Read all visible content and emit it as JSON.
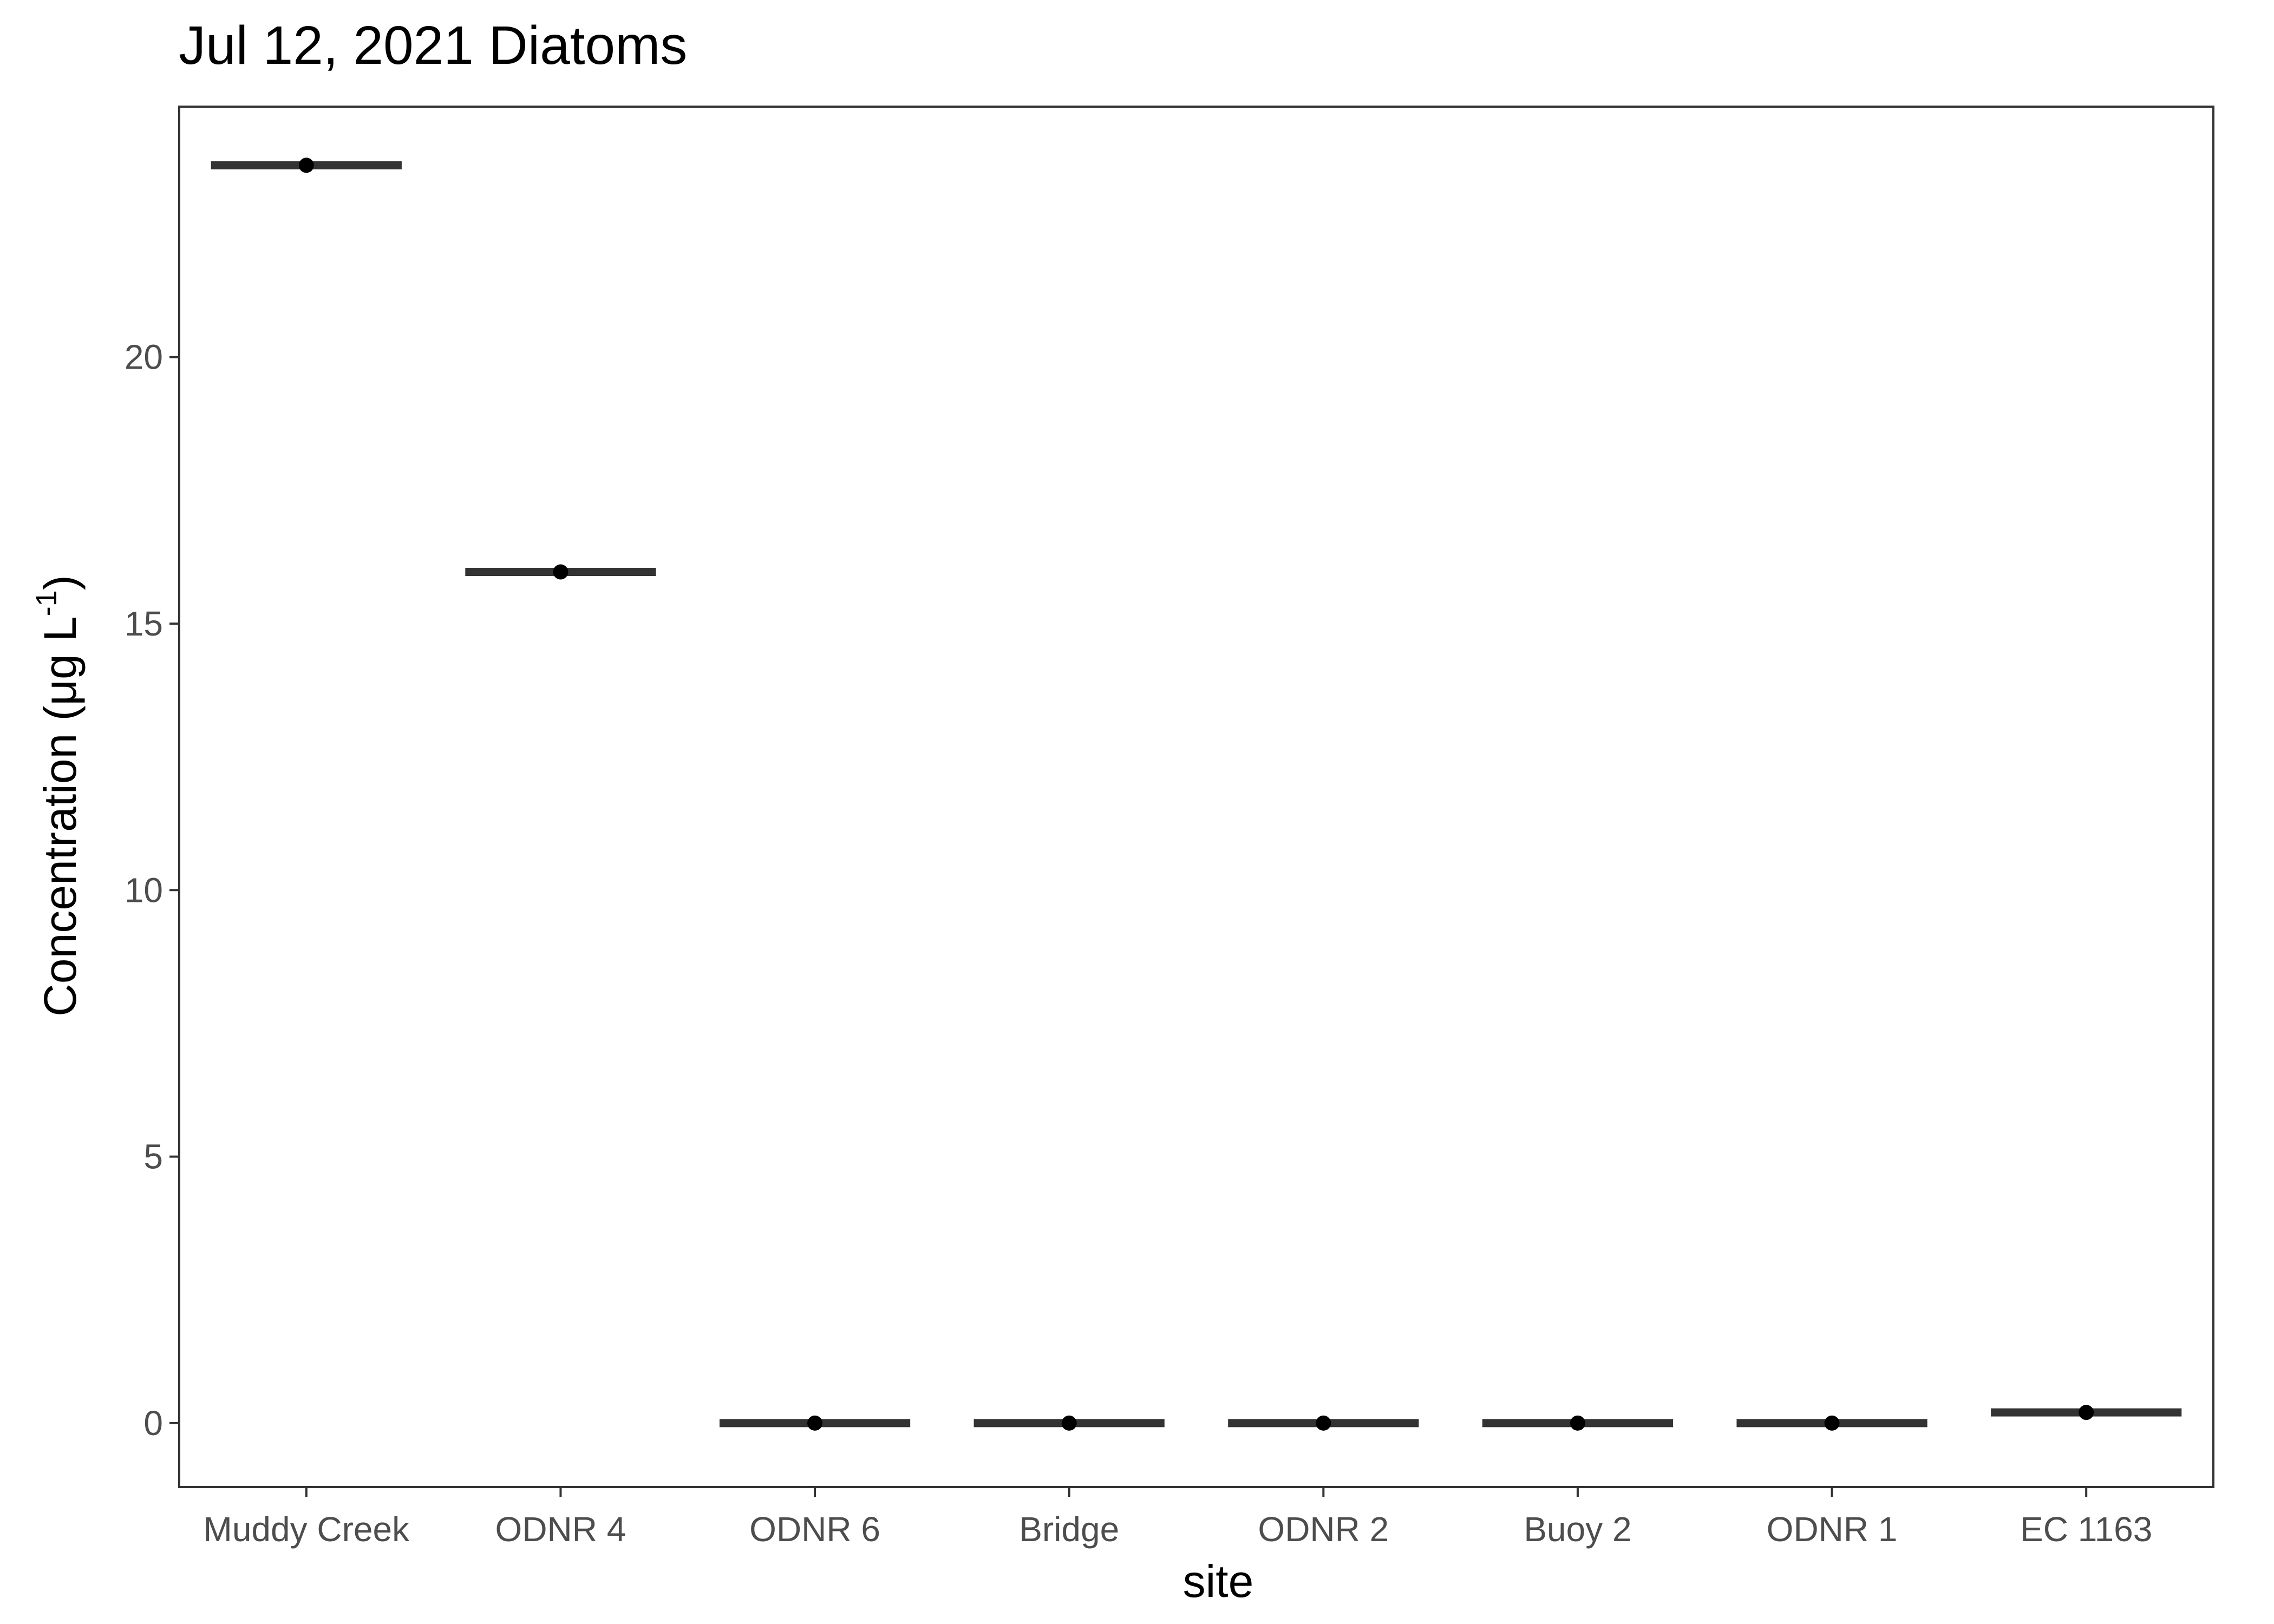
{
  "chart_data": {
    "type": "boxplot",
    "title": "Jul 12, 2021 Diatoms",
    "xlabel": "site",
    "ylabel": {
      "main": "Concentration (μg L",
      "superscript": "-1",
      "close": ")"
    },
    "categories": [
      "Muddy Creek",
      "ODNR 4",
      "ODNR 6",
      "Bridge",
      "ODNR 2",
      "Buoy 2",
      "ODNR 1",
      "EC 1163"
    ],
    "values": [
      23.6,
      15.97,
      0.0,
      0.0,
      0.0,
      0.0,
      0.0,
      0.2
    ],
    "ylim": [
      -1.2,
      24.7
    ],
    "yticks": [
      0,
      5,
      10,
      15,
      20
    ],
    "grid": false,
    "legend": "none",
    "colors": {
      "median_line": "#333333",
      "point": "#000000",
      "panel_border": "#333333",
      "tick_text": "#4d4d4d"
    }
  }
}
